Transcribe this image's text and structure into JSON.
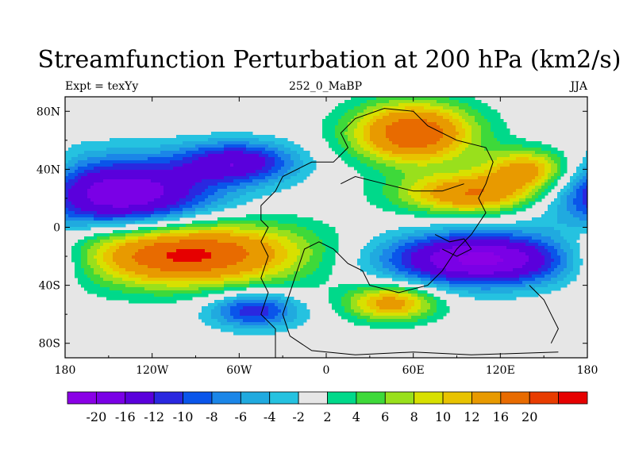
{
  "title": "Streamfunction Perturbation at 200 hPa (km2/s)",
  "subtitle_left": "Expt = texYy",
  "subtitle_center": "252_0_MaBP",
  "subtitle_right": "JJA",
  "x_ticks": [
    {
      "value": -180,
      "label": "180"
    },
    {
      "value": -120,
      "label": "120W"
    },
    {
      "value": -60,
      "label": "60W"
    },
    {
      "value": 0,
      "label": "0"
    },
    {
      "value": 60,
      "label": "60E"
    },
    {
      "value": 120,
      "label": "120E"
    },
    {
      "value": 180,
      "label": "180"
    }
  ],
  "y_ticks": [
    {
      "value": 80,
      "label": "80N"
    },
    {
      "value": 40,
      "label": "40N"
    },
    {
      "value": 0,
      "label": "0"
    },
    {
      "value": -40,
      "label": "40S"
    },
    {
      "value": -80,
      "label": "80S"
    }
  ],
  "colorbar": {
    "colors": [
      "#8a00e6",
      "#7a00e6",
      "#5a00dc",
      "#2a28e0",
      "#0a55ea",
      "#1b86e8",
      "#20aadf",
      "#25c2e0",
      "#e6e6e6",
      "#00d98a",
      "#3ed93a",
      "#99e01c",
      "#d8e000",
      "#e8c300",
      "#e89a00",
      "#e86b00",
      "#e83c00",
      "#e60000"
    ],
    "labels": [
      "-20",
      "-16",
      "-12",
      "-10",
      "-8",
      "-6",
      "-4",
      "-2",
      "2",
      "4",
      "6",
      "8",
      "10",
      "12",
      "16",
      "20"
    ]
  },
  "chart_data": {
    "type": "heatmap",
    "title": "Streamfunction Perturbation at 200 hPa (km2/s)",
    "subtitle_left": "Expt = texYy",
    "subtitle_center": "252_0_MaBP",
    "subtitle_right": "JJA",
    "xlim": [
      -180,
      180
    ],
    "ylim": [
      -90,
      90
    ],
    "color_levels": [
      -20,
      -16,
      -12,
      -10,
      -8,
      -6,
      -4,
      -2,
      2,
      4,
      6,
      8,
      10,
      12,
      16,
      20
    ],
    "features": [
      {
        "name": "max_southern_tropics_w",
        "lon": -100,
        "lat": -18,
        "value": 22
      },
      {
        "name": "max_south_atlantic",
        "lon": 45,
        "lat": -52,
        "value": 14
      },
      {
        "name": "max_north_europe_asia",
        "lon": 60,
        "lat": 65,
        "value": 20
      },
      {
        "name": "max_north_asia_pacific",
        "lon": 100,
        "lat": 23,
        "value": 16
      },
      {
        "name": "max_north_pacific_e",
        "lon": 140,
        "lat": 40,
        "value": 14
      },
      {
        "name": "min_north_pacific_w",
        "lon": -140,
        "lat": 22,
        "value": -20
      },
      {
        "name": "min_north_atlantic",
        "lon": -60,
        "lat": 45,
        "value": -14
      },
      {
        "name": "min_south_indian_ocean",
        "lon": 110,
        "lat": -22,
        "value": -22
      },
      {
        "name": "min_south_pacific_sw",
        "lon": -50,
        "lat": -57,
        "value": -12
      }
    ]
  }
}
